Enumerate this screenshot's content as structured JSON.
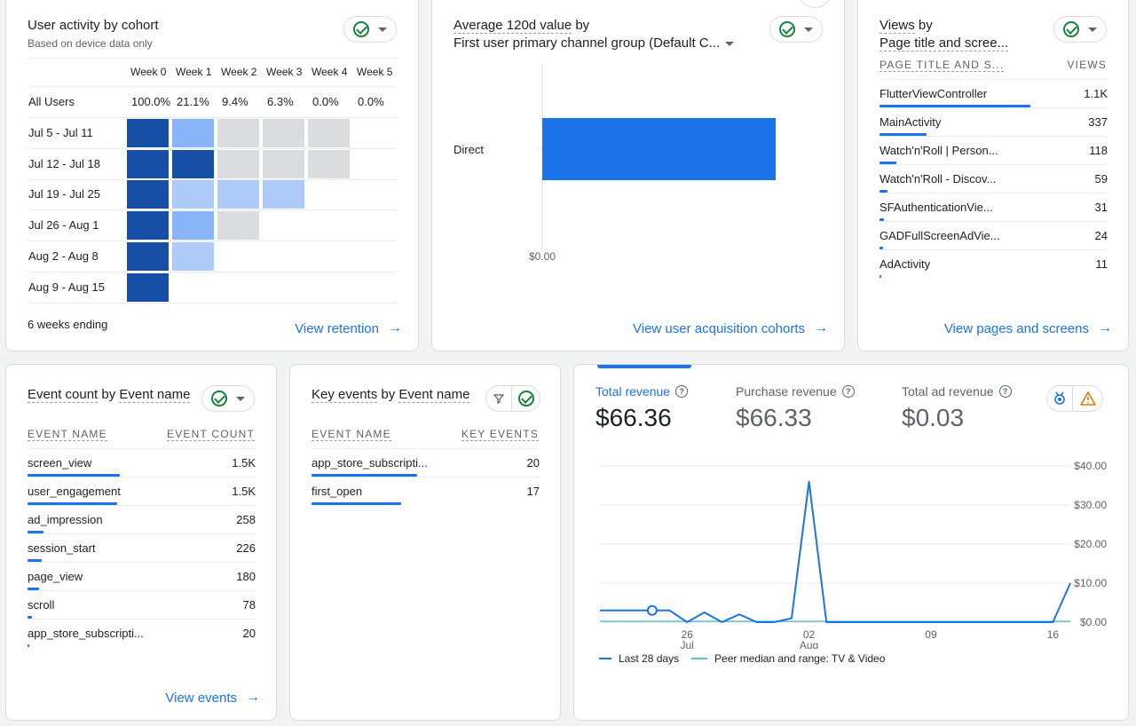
{
  "cohort": {
    "title": "User activity by cohort",
    "subtitle": "Based on device data only",
    "weeks": [
      "Week 0",
      "Week 1",
      "Week 2",
      "Week 3",
      "Week 4",
      "Week 5"
    ],
    "all_users_label": "All Users",
    "all_users_values": [
      "100.0%",
      "21.1%",
      "9.4%",
      "6.3%",
      "0.0%",
      "0.0%"
    ],
    "rows": [
      {
        "label": "Jul 5 - Jul 11",
        "levels": [
          4,
          2,
          0,
          0,
          0
        ]
      },
      {
        "label": "Jul 12 - Jul 18",
        "levels": [
          4,
          4,
          0,
          0,
          0
        ]
      },
      {
        "label": "Jul 19 - Jul 25",
        "levels": [
          4,
          1,
          1,
          1
        ]
      },
      {
        "label": "Jul 26 - Aug 1",
        "levels": [
          4,
          2,
          0
        ]
      },
      {
        "label": "Aug 2 - Aug 8",
        "levels": [
          4,
          1
        ]
      },
      {
        "label": "Aug 9 - Aug 15",
        "levels": [
          4
        ]
      }
    ],
    "footer": "6 weeks ending",
    "link": "View retention"
  },
  "acquisition": {
    "title_prefix": "Average 120d value",
    "title_by": "by",
    "dimension": "First user primary channel group (Default C...",
    "category": "Direct",
    "axis_label": "$0.00",
    "link": "View user acquisition cohorts"
  },
  "pages": {
    "title_prefix": "Views",
    "title_by": "by",
    "dimension": "Page title and scree...",
    "col_name": "PAGE TITLE AND S...",
    "col_value": "VIEWS",
    "rows": [
      {
        "label": "FlutterViewController",
        "value": "1.1K",
        "share": 1.0
      },
      {
        "label": "MainActivity",
        "value": "337",
        "share": 0.31
      },
      {
        "label": "Watch'n'Roll | Person...",
        "value": "118",
        "share": 0.11
      },
      {
        "label": "Watch'n'Roll - Discov...",
        "value": "59",
        "share": 0.055
      },
      {
        "label": "SFAuthenticationVie...",
        "value": "31",
        "share": 0.03
      },
      {
        "label": "GADFullScreenAdVie...",
        "value": "24",
        "share": 0.022
      },
      {
        "label": "AdActivity",
        "value": "11",
        "share": 0.01
      }
    ],
    "link": "View pages and screens"
  },
  "events": {
    "title_metric": "Event count",
    "title_by": "by",
    "title_dim": "Event name",
    "col_name": "EVENT NAME",
    "col_value": "EVENT COUNT",
    "rows": [
      {
        "label": "screen_view",
        "value": "1.5K",
        "share": 0.4
      },
      {
        "label": "user_engagement",
        "value": "1.5K",
        "share": 0.39
      },
      {
        "label": "ad_impression",
        "value": "258",
        "share": 0.07
      },
      {
        "label": "session_start",
        "value": "226",
        "share": 0.06
      },
      {
        "label": "page_view",
        "value": "180",
        "share": 0.05
      },
      {
        "label": "scroll",
        "value": "78",
        "share": 0.02
      },
      {
        "label": "app_store_subscripti...",
        "value": "20",
        "share": 0.005
      }
    ],
    "link": "View events"
  },
  "key_events": {
    "title_metric": "Key events",
    "title_by": "by",
    "title_dim": "Event name",
    "col_name": "EVENT NAME",
    "col_value": "KEY EVENTS",
    "rows": [
      {
        "label": "app_store_subscripti...",
        "value": "20",
        "share": 0.54
      },
      {
        "label": "first_open",
        "value": "17",
        "share": 0.46
      }
    ]
  },
  "revenue": {
    "metrics": [
      {
        "label": "Total revenue",
        "value": "$66.36",
        "active": true
      },
      {
        "label": "Purchase revenue",
        "value": "$66.33",
        "active": false
      },
      {
        "label": "Total ad revenue",
        "value": "$0.03",
        "active": false
      }
    ],
    "legend_primary": "Last 28 days",
    "legend_secondary": "Peer median and range: TV & Video",
    "colors": {
      "primary": "#1a73e8",
      "peer": "#5bc0c8"
    }
  },
  "chart_data": {
    "type": "line",
    "x_tick_labels": [
      {
        "day": "26",
        "month": "Jul"
      },
      {
        "day": "02",
        "month": "Aug"
      },
      {
        "day": "09",
        "month": ""
      },
      {
        "day": "16",
        "month": ""
      }
    ],
    "y_tick_labels": [
      "$40.00",
      "$30.00",
      "$20.00",
      "$10.00",
      "$0.00"
    ],
    "ylim": [
      0,
      40
    ],
    "series": [
      {
        "name": "Last 28 days",
        "values": [
          3,
          3,
          3,
          3,
          3,
          0,
          2.5,
          0,
          2,
          0,
          0,
          1,
          36,
          0,
          0,
          0,
          0,
          0,
          0,
          0,
          0,
          0,
          0,
          0,
          0,
          0,
          0,
          10
        ]
      },
      {
        "name": "Peer median and range: TV & Video",
        "values": [
          0.2,
          0.2,
          0.2,
          0.2,
          0.2,
          0.2,
          0.2,
          0.2,
          0.2,
          0.2,
          0.2,
          0.2,
          0.2,
          0.2,
          0.2,
          0.2,
          0.2,
          0.2,
          0.2,
          0.2,
          0.2,
          0.2,
          0.2,
          0.2,
          0.2,
          0.2,
          0.2,
          0.2
        ]
      }
    ],
    "marker_index": 3
  },
  "acquisition_chart": {
    "type": "bar",
    "categories": [
      "Direct"
    ],
    "values": [
      1
    ]
  }
}
